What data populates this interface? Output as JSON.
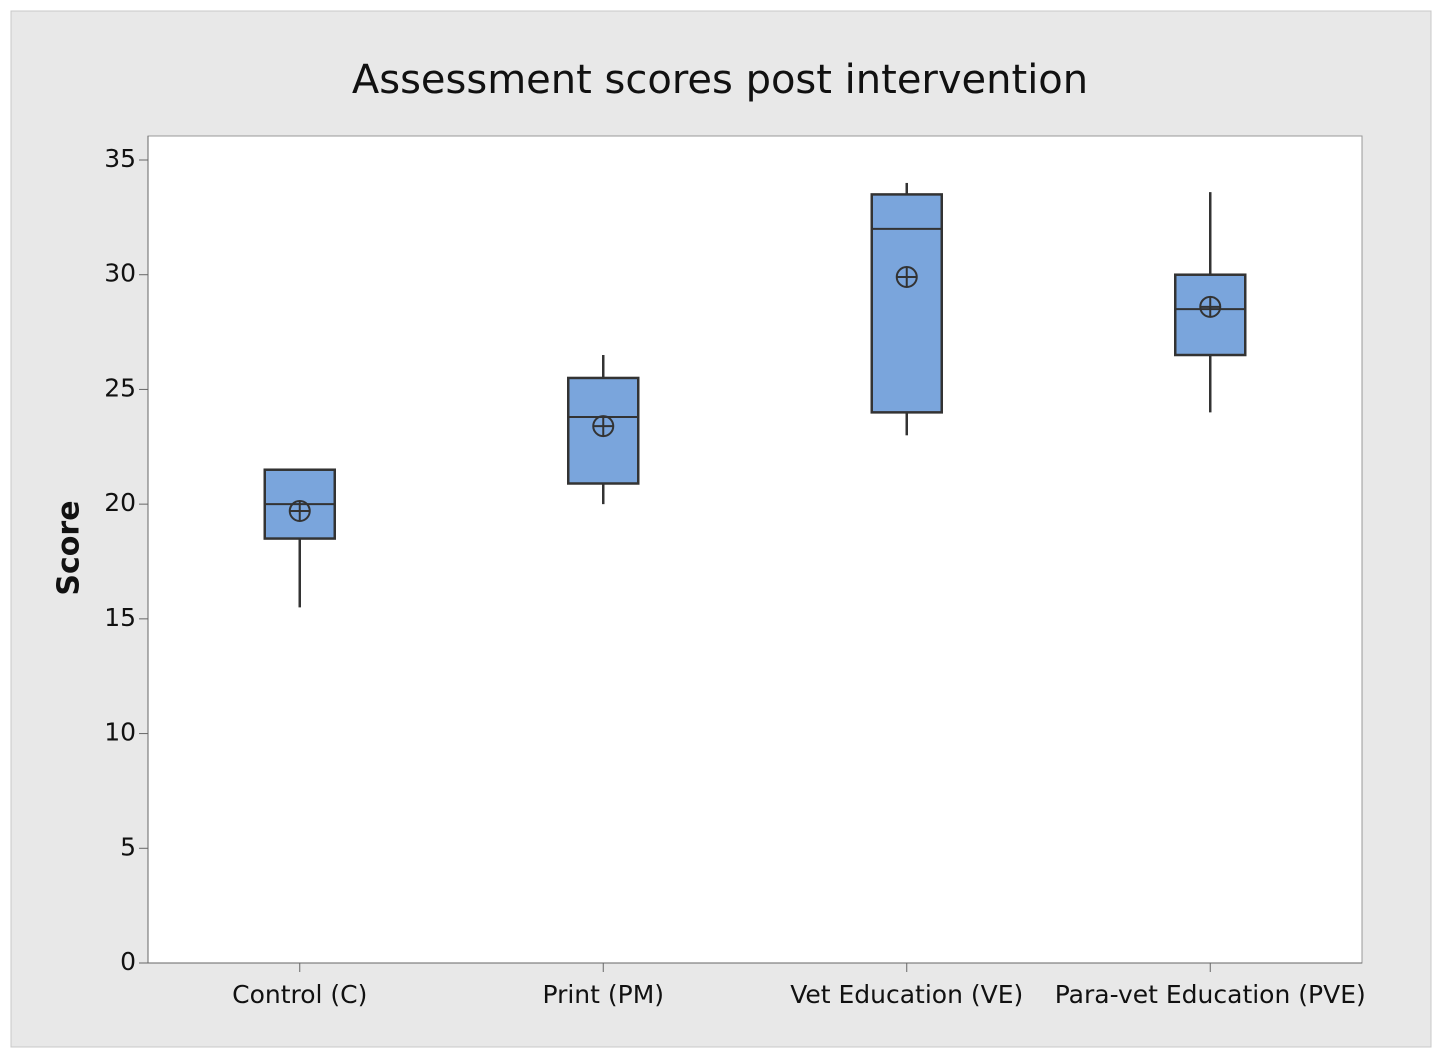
{
  "chart_data": {
    "type": "box",
    "title": "Assessment scores post intervention",
    "y_label": "Score",
    "categories": [
      "Control (C)",
      "Print (PM)",
      "Vet Education (VE)",
      "Para-vet Education (PVE)"
    ],
    "boxes": [
      {
        "min": 15.5,
        "q1": 18.5,
        "median": 20,
        "q3": 21.5,
        "max": 21.5,
        "mean": 19.7
      },
      {
        "min": 20,
        "q1": 20.9,
        "median": 23.8,
        "q3": 25.5,
        "max": 26.5,
        "mean": 23.4
      },
      {
        "min": 23,
        "q1": 24,
        "median": 32,
        "q3": 33.5,
        "max": 34,
        "mean": 29.9
      },
      {
        "min": 24,
        "q1": 26.5,
        "median": 28.5,
        "q3": 30,
        "max": 33.6,
        "mean": 28.6
      }
    ],
    "color": "#7aa5dc",
    "ylim": [
      0,
      35
    ],
    "yticks": [
      0,
      5,
      10,
      15,
      20,
      25,
      30,
      35
    ]
  }
}
